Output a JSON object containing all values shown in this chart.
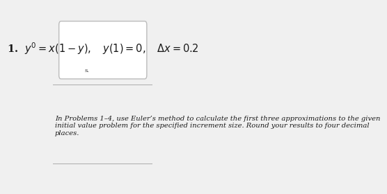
{
  "title_text": "1.  $y^{\\prime} = x(1 - y), \\quad y(1) = 0, \\quad \\Delta x = 0.2$",
  "subtitle_small": "s.",
  "body_text": "In Problems 1–4, use Euler’s method to calculate the first three approximations to the given\ninitial value problem for the specified increment size. Round your results to four decimal\nplaces.",
  "bg_color": "#f0f0f0",
  "box_bg": "#ffffff",
  "box_border": "#bbbbbb",
  "title_fontsize": 10.5,
  "body_fontsize": 7.2,
  "body_style": "italic"
}
